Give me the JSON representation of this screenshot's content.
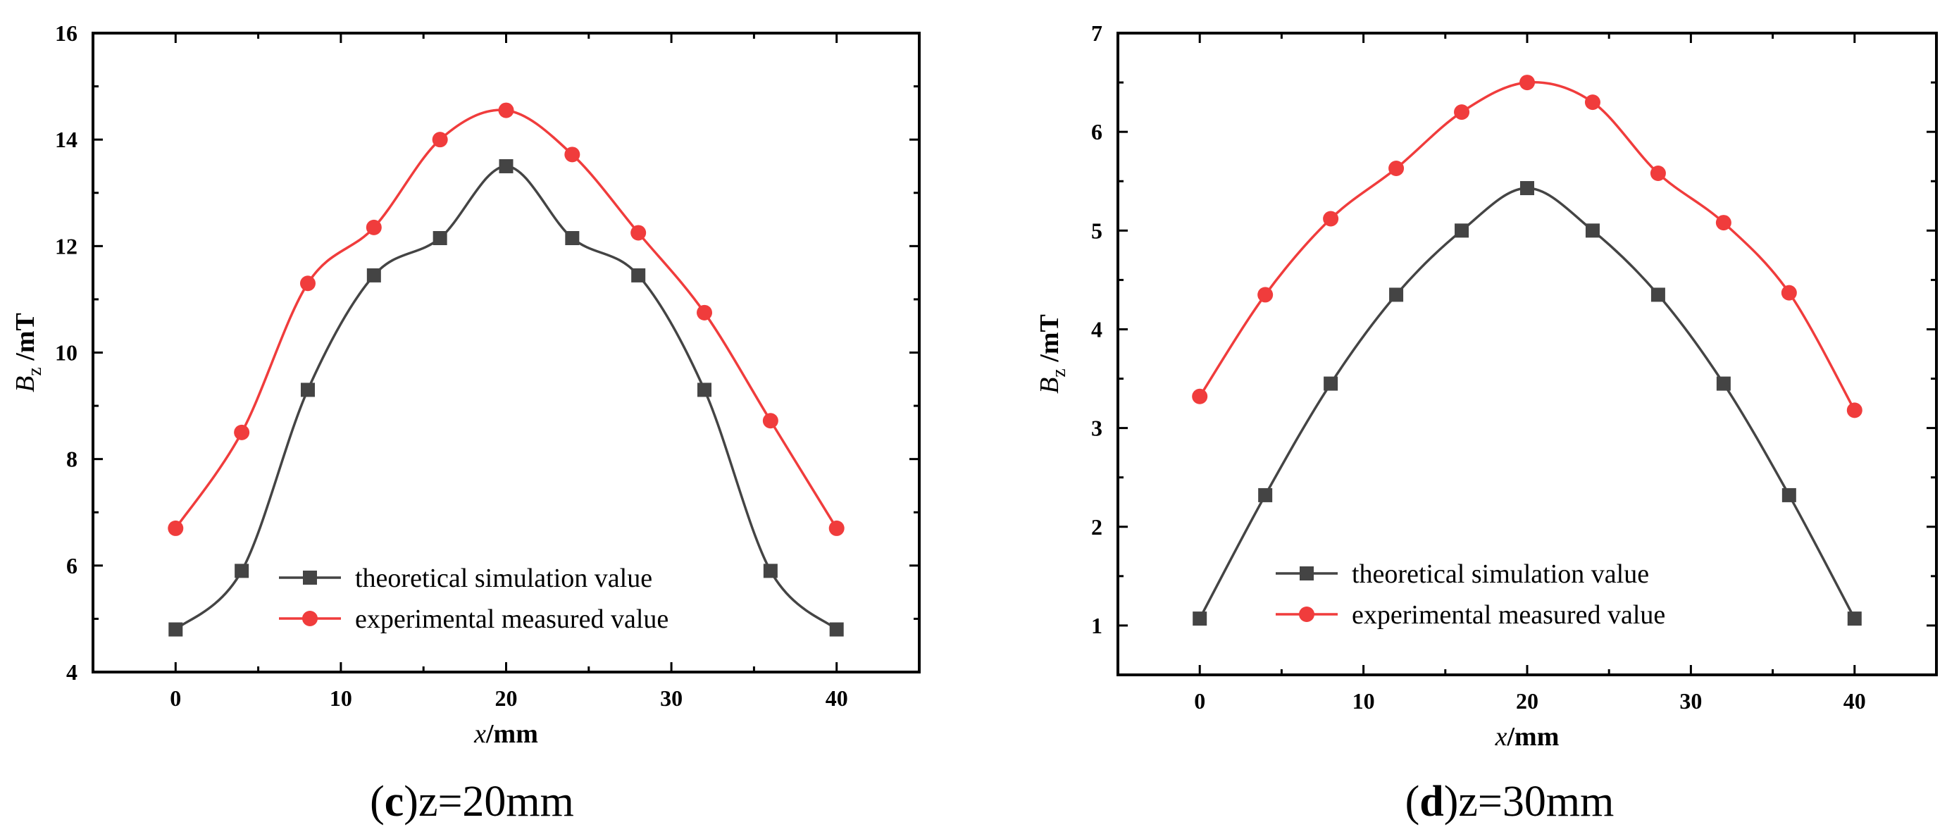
{
  "chart_data": [
    {
      "type": "line",
      "caption": {
        "prefix": "(",
        "letter": "c",
        "rest": ")z=20mm"
      },
      "xlabel": {
        "var": "x",
        "unit": "/mm"
      },
      "ylabel": {
        "var": "B",
        "sub": "z",
        "unit": " /mT"
      },
      "xlim": [
        -5,
        45
      ],
      "ylim": [
        4,
        16
      ],
      "xticks": [
        0,
        10,
        20,
        30,
        40
      ],
      "yticks": [
        4,
        6,
        8,
        10,
        12,
        14,
        16
      ],
      "x": [
        0,
        4,
        8,
        12,
        16,
        20,
        24,
        28,
        32,
        36,
        40
      ],
      "series": [
        {
          "name": "theoretical simulation value",
          "color": "#444444",
          "marker": "square",
          "values": [
            4.8,
            5.9,
            9.3,
            11.45,
            12.15,
            13.5,
            12.15,
            11.45,
            9.3,
            5.9,
            4.8
          ]
        },
        {
          "name": "experimental measured value",
          "color": "#f03c3c",
          "marker": "circle",
          "values": [
            6.7,
            8.5,
            11.3,
            12.35,
            14.0,
            14.55,
            13.72,
            12.25,
            10.75,
            8.72,
            6.7
          ]
        }
      ]
    },
    {
      "type": "line",
      "caption": {
        "prefix": "(",
        "letter": "d",
        "rest": ")z=30mm"
      },
      "xlabel": {
        "var": "x",
        "unit": "/mm"
      },
      "ylabel": {
        "var": "B",
        "sub": "z",
        "unit": " /mT"
      },
      "xlim": [
        -5,
        45
      ],
      "ylim": [
        0.5,
        7
      ],
      "xticks": [
        0,
        10,
        20,
        30,
        40
      ],
      "yticks": [
        1,
        2,
        3,
        4,
        5,
        6,
        7
      ],
      "x": [
        0,
        4,
        8,
        12,
        16,
        20,
        24,
        28,
        32,
        36,
        40
      ],
      "series": [
        {
          "name": "theoretical simulation value",
          "color": "#444444",
          "marker": "square",
          "values": [
            1.07,
            2.32,
            3.45,
            4.35,
            5.0,
            5.43,
            5.0,
            4.35,
            3.45,
            2.32,
            1.07
          ]
        },
        {
          "name": "experimental measured value",
          "color": "#f03c3c",
          "marker": "circle",
          "values": [
            3.32,
            4.35,
            5.12,
            5.63,
            6.2,
            6.5,
            6.3,
            5.58,
            5.08,
            4.37,
            3.18
          ]
        }
      ]
    }
  ]
}
